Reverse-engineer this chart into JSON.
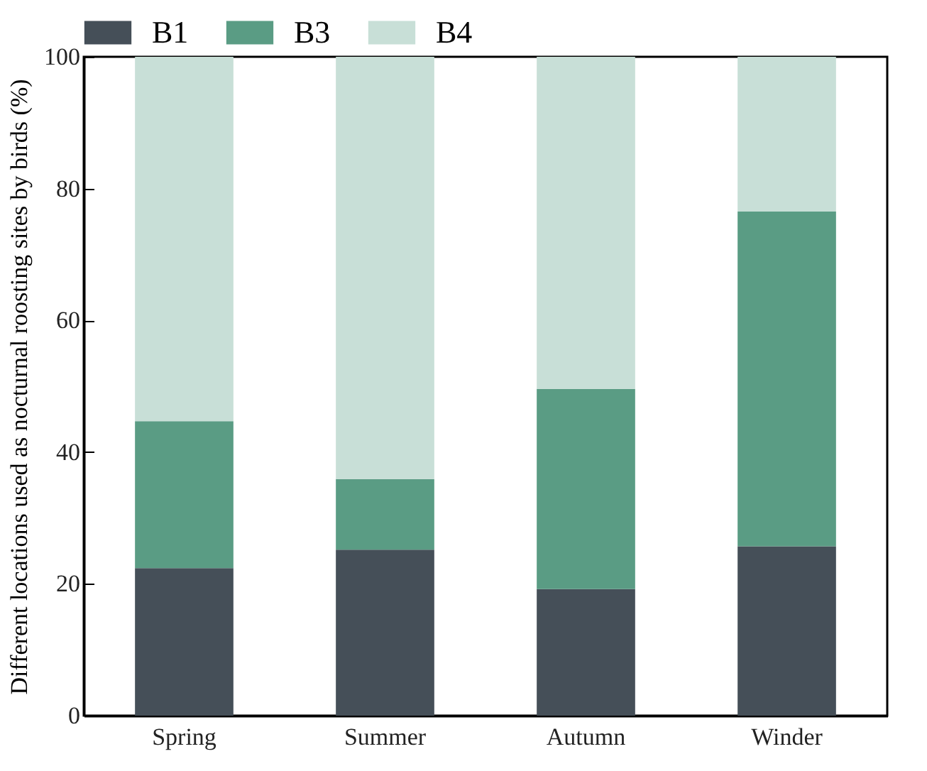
{
  "chart_data": {
    "type": "bar",
    "stacked": true,
    "ylabel": "Different locations used as nocturnal roosting sites by birds (%)",
    "categories": [
      "Spring",
      "Summer",
      "Autumn",
      "Winder"
    ],
    "series": [
      {
        "name": "B1",
        "color": "#454f58",
        "values": [
          22.4,
          25.2,
          19.2,
          25.7
        ]
      },
      {
        "name": "B3",
        "color": "#5a9c84",
        "values": [
          22.3,
          10.7,
          30.4,
          50.8
        ]
      },
      {
        "name": "B4",
        "color": "#c8dfd7",
        "values": [
          55.3,
          64.1,
          50.4,
          23.5
        ]
      }
    ],
    "ylim": [
      0,
      100
    ],
    "yticks": [
      0,
      20,
      40,
      60,
      80,
      100
    ],
    "legend": "top left",
    "grid": false
  }
}
